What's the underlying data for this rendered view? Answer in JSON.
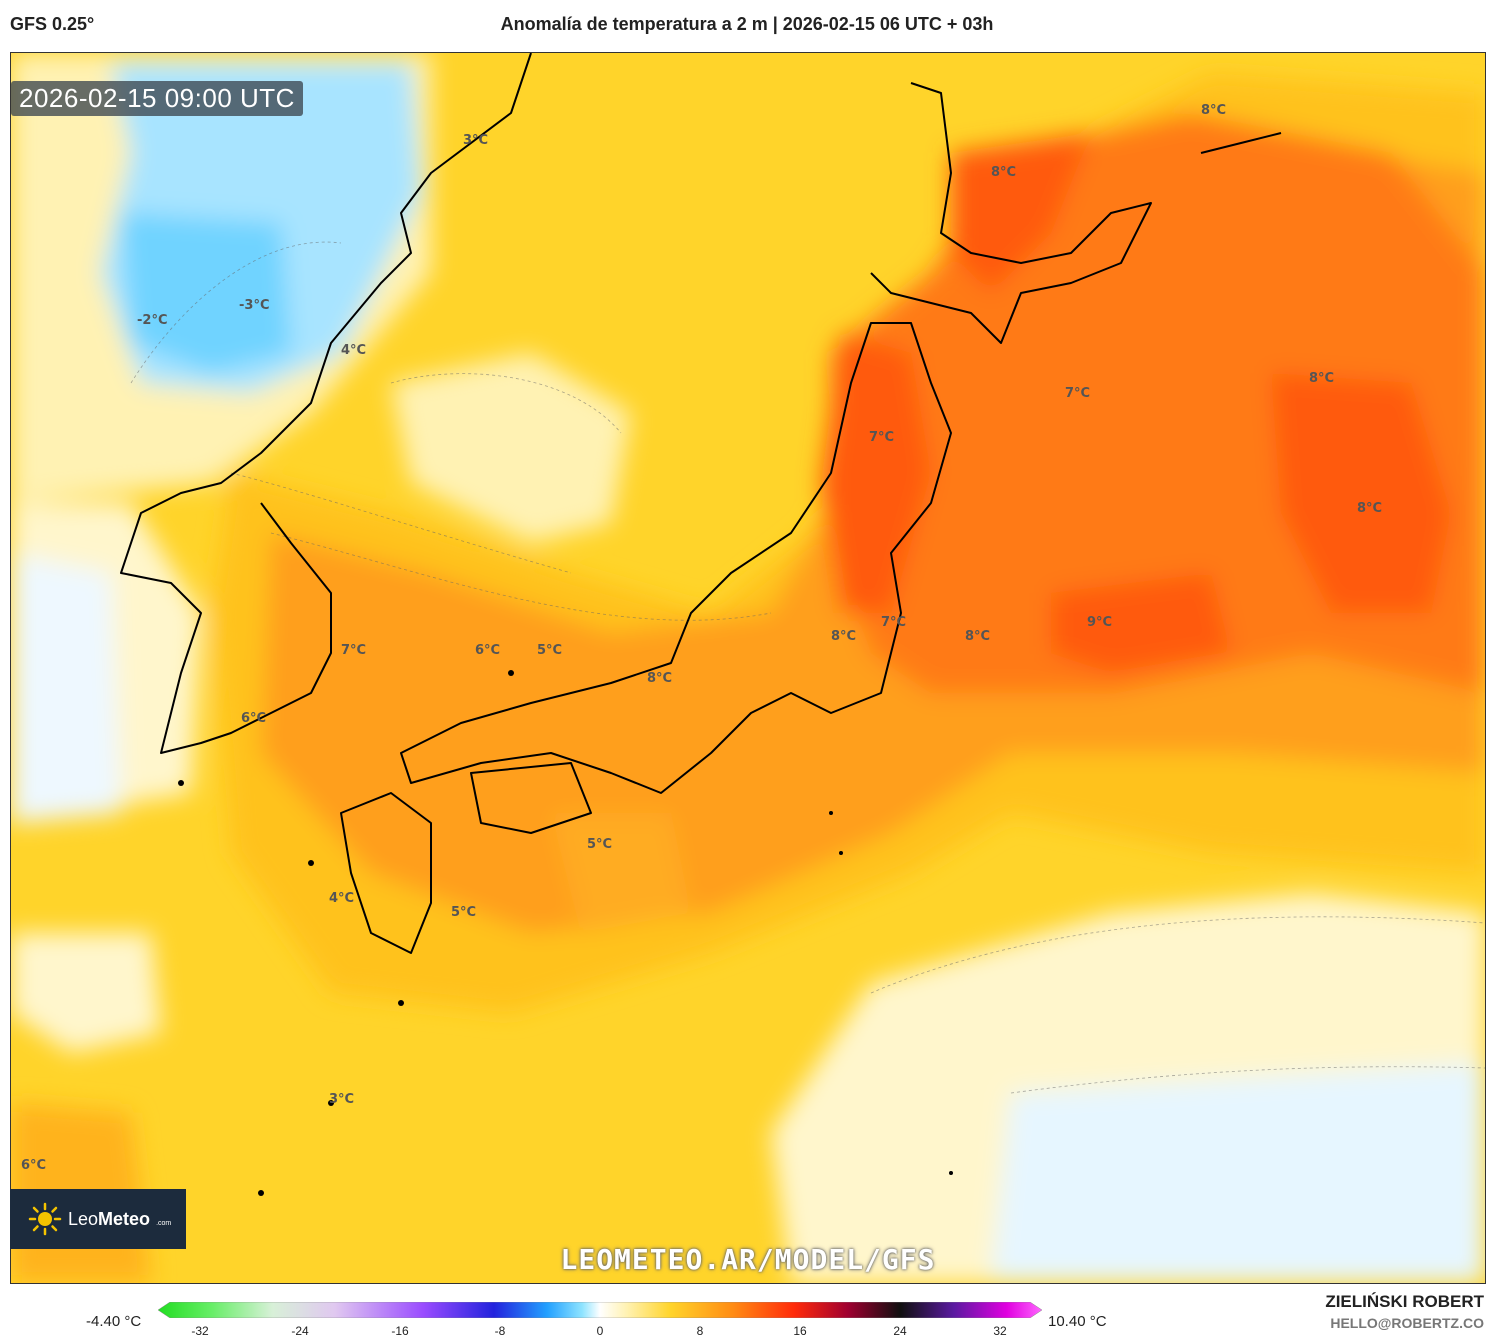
{
  "header": {
    "model": "GFS 0.25°",
    "title": "Anomalía de temperatura a 2 m | 2026-02-15 06 UTC + 03h"
  },
  "map": {
    "valid_time": "2026-02-15 09:00 UTC",
    "watermark": "LEOMETEO.AR/MODEL/GFS",
    "logo": {
      "brand_light": "Leo",
      "brand_bold": "Meteo",
      "suffix": ".com"
    },
    "labels": [
      "3°C",
      "8°C",
      "8°C",
      "-3°C",
      "-2°C",
      "4°C",
      "7°C",
      "8°C",
      "7°C",
      "8°C",
      "7°C",
      "8°C",
      "9°C",
      "6°C",
      "5°C",
      "8°C",
      "7°C",
      "8°C",
      "6°C",
      "5°C",
      "4°C",
      "5°C",
      "3°C",
      "6°C"
    ],
    "colors": {
      "pale": "#fff2b3",
      "yellow": "#ffd42a",
      "gold": "#ffc21a",
      "orange": "#ff9f1a",
      "deep_orange": "#ff6a10",
      "red_orange": "#ff4a0a",
      "cold": "#a8e4ff",
      "cold_deep": "#4cc6ff",
      "land_line": "#000000"
    }
  },
  "colorbar": {
    "min_label": "-4.40 °C",
    "max_label": "10.40 °C",
    "ticks": [
      "-32",
      "-24",
      "-16",
      "-8",
      "0",
      "8",
      "16",
      "24",
      "32"
    ]
  },
  "credits": {
    "name": "ZIELIŃSKI ROBERT",
    "email": "HELLO@ROBERTZ.CO"
  }
}
